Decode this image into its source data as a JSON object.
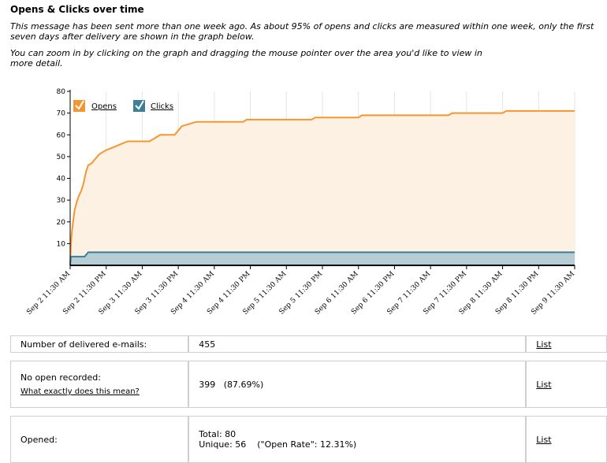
{
  "title": "Opens & Clicks over time",
  "intro1": "This message has been sent more than one week ago. As about 95% of opens and clicks are measured within one week, only the first seven days after delivery are shown in the graph below.",
  "intro2": "You can zoom in by clicking on the graph and dragging the mouse pointer over the area you'd like to view in more detail.",
  "colors": {
    "opens": "#f7952f",
    "opens_fill": "#fdf1e4",
    "clicks": "#3f7e97",
    "clicks_fill": "#b6cdd6"
  },
  "chart_data": {
    "type": "area",
    "ylim": [
      0,
      80
    ],
    "yticks": [
      10,
      20,
      30,
      40,
      50,
      60,
      70,
      80
    ],
    "xlim": [
      0,
      7
    ],
    "x_unit": "days since Sep 2 11:30 AM",
    "xtick_labels": [
      "Sep 2 11:30 AM",
      "Sep 2 11:30 PM",
      "Sep 3 11:30 AM",
      "Sep 3 11:30 PM",
      "Sep 4 11:30 AM",
      "Sep 4 11:30 PM",
      "Sep 5 11:30 AM",
      "Sep 5 11:30 PM",
      "Sep 6 11:30 AM",
      "Sep 6 11:30 PM",
      "Sep 7 11:30 AM",
      "Sep 7 11:30 PM",
      "Sep 8 11:30 AM",
      "Sep 8 11:30 PM",
      "Sep 9 11:30 AM"
    ],
    "legend": [
      {
        "label": "Opens",
        "checked": true
      },
      {
        "label": "Clicks",
        "checked": true
      }
    ],
    "series": [
      {
        "name": "Opens",
        "points": [
          [
            0,
            0
          ],
          [
            0.01,
            9
          ],
          [
            0.02,
            14
          ],
          [
            0.04,
            20
          ],
          [
            0.06,
            25
          ],
          [
            0.09,
            29
          ],
          [
            0.12,
            32
          ],
          [
            0.15,
            34
          ],
          [
            0.18,
            37
          ],
          [
            0.2,
            40
          ],
          [
            0.22,
            43
          ],
          [
            0.25,
            46
          ],
          [
            0.3,
            47
          ],
          [
            0.35,
            49
          ],
          [
            0.4,
            51
          ],
          [
            0.45,
            52
          ],
          [
            0.5,
            53
          ],
          [
            0.58,
            54
          ],
          [
            0.65,
            55
          ],
          [
            0.72,
            56
          ],
          [
            0.8,
            57
          ],
          [
            1.1,
            57
          ],
          [
            1.15,
            58
          ],
          [
            1.2,
            59
          ],
          [
            1.25,
            60
          ],
          [
            1.45,
            60
          ],
          [
            1.5,
            62
          ],
          [
            1.55,
            64
          ],
          [
            1.65,
            65
          ],
          [
            1.75,
            66
          ],
          [
            2.4,
            66
          ],
          [
            2.45,
            67
          ],
          [
            3.35,
            67
          ],
          [
            3.4,
            68
          ],
          [
            4.0,
            68
          ],
          [
            4.05,
            69
          ],
          [
            5.25,
            69
          ],
          [
            5.3,
            70
          ],
          [
            6.0,
            70
          ],
          [
            6.05,
            71
          ],
          [
            7,
            71
          ]
        ]
      },
      {
        "name": "Clicks",
        "points": [
          [
            0,
            0
          ],
          [
            0.01,
            4
          ],
          [
            0.2,
            4
          ],
          [
            0.25,
            6
          ],
          [
            7,
            6
          ]
        ]
      }
    ]
  },
  "stats": {
    "delivered_label": "Number of delivered e-mails:",
    "delivered_value": "455",
    "no_open_label": "No open recorded:",
    "no_open_help": "What exactly does this mean?",
    "no_open_value": "399   (87.69%)",
    "opened_label": "Opened:",
    "opened_total": "Total: 80",
    "opened_unique": "Unique: 56    (\"Open Rate\": 12.31%)",
    "list_label": "List"
  }
}
